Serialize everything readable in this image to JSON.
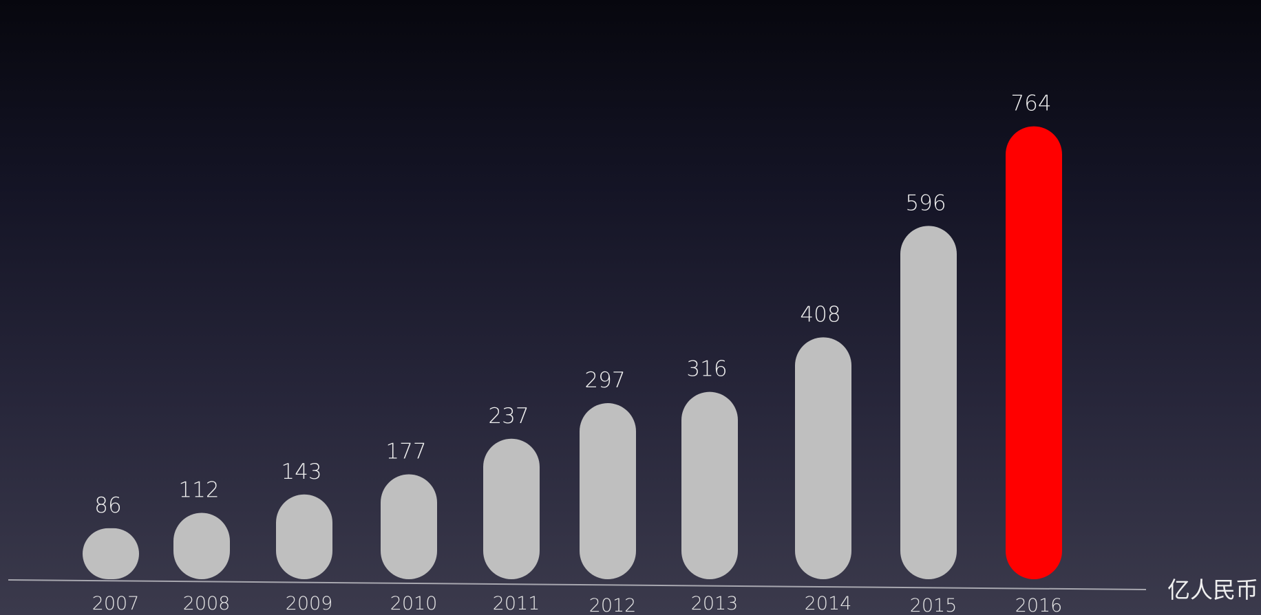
{
  "chart_data": {
    "type": "bar",
    "categories": [
      "2007",
      "2008",
      "2009",
      "2010",
      "2011",
      "2012",
      "2013",
      "2014",
      "2015",
      "2016"
    ],
    "values": [
      86,
      112,
      143,
      177,
      237,
      297,
      316,
      408,
      596,
      764
    ],
    "value_labels": [
      "86",
      "112",
      "143",
      "177",
      "237",
      "297",
      "316",
      "408",
      "596",
      "764"
    ],
    "unit": "亿人民币",
    "title": "",
    "xlabel": "",
    "ylabel": "",
    "ylim": [
      0,
      800
    ],
    "grid": false,
    "legend": "none",
    "colors": {
      "bar": "#bfbfbf",
      "highlight": "#ff0000",
      "axis": "#a8a8b0",
      "text": "#f0f0f0"
    },
    "highlight_category": "2016"
  }
}
